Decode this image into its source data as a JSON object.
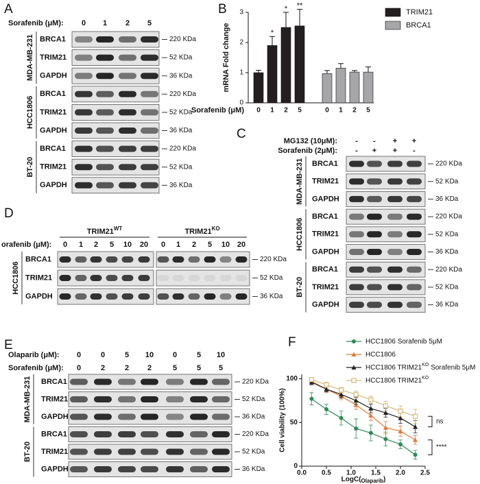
{
  "panel_labels": [
    "A",
    "B",
    "C",
    "D",
    "E",
    "F"
  ],
  "blot_a": {
    "treatment": "Sorafenib (μM):",
    "lanes": [
      "0",
      "1",
      "2",
      "5"
    ],
    "groups": [
      {
        "cell": "MDA-MB-231",
        "rows": [
          {
            "protein": "BRCA1",
            "size": "220 KDa"
          },
          {
            "protein": "TRIM21",
            "size": "52 KDa"
          },
          {
            "protein": "GAPDH",
            "size": "36 KDa"
          }
        ]
      },
      {
        "cell": "HCC1806",
        "rows": [
          {
            "protein": "BRCA1",
            "size": "220 KDa"
          },
          {
            "protein": "TRIM21",
            "size": "52 KDa"
          },
          {
            "protein": "GAPDH",
            "size": "36 KDa"
          }
        ]
      },
      {
        "cell": "BT-20",
        "rows": [
          {
            "protein": "BRCA1",
            "size": "220 KDa"
          },
          {
            "protein": "TRIM21",
            "size": "52 KDa"
          },
          {
            "protein": "GAPDH",
            "size": "36 KDa"
          }
        ]
      }
    ]
  },
  "blot_c": {
    "treatments": [
      {
        "label": "MG132 (10μM):",
        "lanes": [
          "-",
          "-",
          "+",
          "+"
        ]
      },
      {
        "label": "Sorafenib (2μM):",
        "lanes": [
          "-",
          "+",
          "+",
          "-"
        ]
      }
    ],
    "groups": [
      {
        "cell": "MDA-MB-231",
        "rows": [
          {
            "protein": "BRCA1",
            "size": "220 KDa"
          },
          {
            "protein": "TRIM21",
            "size": "52 KDa"
          },
          {
            "protein": "GAPDH",
            "size": "36 KDa"
          }
        ]
      },
      {
        "cell": "HCC1806",
        "rows": [
          {
            "protein": "BRCA1",
            "size": "220 KDa"
          },
          {
            "protein": "TRIM21",
            "size": "52 KDa"
          },
          {
            "protein": "GAPDH",
            "size": "36 KDa"
          }
        ]
      },
      {
        "cell": "BT-20",
        "rows": [
          {
            "protein": "BRCA1",
            "size": "220 KDa"
          },
          {
            "protein": "TRIM21",
            "size": "52 KDa"
          },
          {
            "protein": "GAPDH",
            "size": "36 KDa"
          }
        ]
      }
    ]
  },
  "blot_d": {
    "treatment": "orafenib (μM):",
    "conditions": [
      {
        "label": "TRIM21",
        "sup": "WT",
        "lanes": [
          "0",
          "1",
          "2",
          "5",
          "10",
          "20"
        ]
      },
      {
        "label": "TRIM21",
        "sup": "KO",
        "lanes": [
          "0",
          "1",
          "2",
          "5",
          "10",
          "20"
        ]
      }
    ],
    "groups": [
      {
        "cell": "HCC1806",
        "rows": [
          {
            "protein": "BRCA1",
            "size": "220 KDa"
          },
          {
            "protein": "TRIM21",
            "size": "52 KDa"
          },
          {
            "protein": "GAPDH",
            "size": "36 KDa"
          }
        ]
      }
    ]
  },
  "blot_e": {
    "treatments": [
      {
        "label": "Olaparib (μM):",
        "lanes": [
          "0",
          "0",
          "5",
          "10",
          "0",
          "5",
          "10"
        ]
      },
      {
        "label": "Sorafenib (μM):",
        "lanes": [
          "0",
          "2",
          "2",
          "2",
          "5",
          "5",
          "5"
        ]
      }
    ],
    "groups": [
      {
        "cell": "MDA-MB-231",
        "rows": [
          {
            "protein": "BRCA1",
            "size": "220 KDa"
          },
          {
            "protein": "TRIM21",
            "size": "52 KDa"
          },
          {
            "protein": "GAPDH",
            "size": "36 KDa"
          }
        ]
      },
      {
        "cell": "BT-20",
        "rows": [
          {
            "protein": "BRCA1",
            "size": "220 KDa"
          },
          {
            "protein": "TRIM21",
            "size": "52 KDa"
          },
          {
            "protein": "GAPDH",
            "size": "36 KDa"
          }
        ]
      }
    ]
  },
  "chart_data": [
    {
      "type": "bar",
      "y_label": "mRNA Fold change",
      "x_label": "Sorafenib (μM)",
      "categories": [
        "0",
        "1",
        "2",
        "5"
      ],
      "ylim": [
        0,
        3
      ],
      "yticks": [
        0,
        1,
        2,
        3
      ],
      "series": [
        {
          "name": "TRIM21",
          "color": "#231f20",
          "values": [
            1,
            1.9,
            2.5,
            2.55
          ],
          "errors": [
            0.08,
            0.3,
            0.5,
            0.55
          ],
          "annotations": [
            null,
            "*",
            "*",
            "**"
          ]
        },
        {
          "name": "BRCA1",
          "color": "#a6a6a8",
          "values": [
            0.97,
            1.15,
            1.02,
            1.02
          ],
          "errors": [
            0.1,
            0.15,
            0.05,
            0.17
          ]
        }
      ]
    },
    {
      "type": "line",
      "y_label": "Cell viability (100%)",
      "x_label": [
        "LogC(",
        "Olaparib",
        ")"
      ],
      "x": [
        0.2,
        0.5,
        0.8,
        1.1,
        1.4,
        1.7,
        2,
        2.3
      ],
      "xlim": [
        0,
        2.5
      ],
      "xticks": [
        {
          "value": 0,
          "label": "0.0"
        },
        0.5,
        {
          "value": 1,
          "label": "1.0"
        },
        1.5,
        {
          "value": 2,
          "label": "2.0"
        },
        2.5
      ],
      "ylim": [
        0,
        105
      ],
      "yticks": [
        0,
        50,
        100
      ],
      "series": [
        {
          "name": "HCC1806 Sorafenib 5μM",
          "color": "#2e8b57",
          "marker": "circle",
          "values": [
            77,
            65,
            55,
            43,
            38,
            31,
            25,
            13
          ],
          "errors": [
            7,
            6,
            8,
            11,
            9,
            8,
            5,
            5
          ]
        },
        {
          "name": "HCC1806",
          "color": "#e07b39",
          "marker": "triangle",
          "values": [
            97,
            88,
            80,
            70,
            58,
            44,
            40,
            30
          ],
          "errors": [
            3,
            4,
            4,
            5,
            6,
            7,
            6,
            5
          ]
        },
        {
          "name": "HCC1806 TRIM21",
          "name_sup": "KO",
          "name_end": "Sorafenib 5μM",
          "color": "#222222",
          "marker": "triangle",
          "values": [
            96,
            88,
            82,
            75,
            66,
            61,
            55,
            45
          ],
          "errors": [
            3,
            3,
            4,
            4,
            5,
            5,
            6,
            7
          ]
        },
        {
          "name": "HCC1806 TRIM21",
          "name_sup": "KO",
          "color": "#d9b87a",
          "marker": "square-open",
          "values": [
            99,
            93,
            87,
            82,
            76,
            69,
            63,
            57
          ],
          "errors": [
            2,
            3,
            3,
            4,
            4,
            5,
            6,
            8
          ]
        }
      ],
      "annotations": [
        {
          "text": "ns"
        },
        {
          "text": "****"
        }
      ]
    }
  ]
}
